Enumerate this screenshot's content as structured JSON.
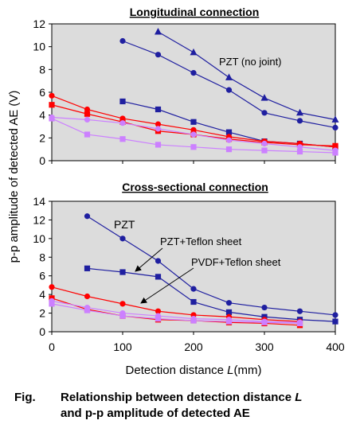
{
  "figure": {
    "y_axis_label": "p-p amplitude of detected AE (V)",
    "x_axis_label_prefix": "Detection distance ",
    "x_axis_label_var": "L",
    "x_axis_label_suffix": "(mm)",
    "caption_label": "Fig.",
    "caption_line1_text": "Relationship between detection distance ",
    "caption_line1_var": "L",
    "caption_line2_text": "and p-p amplitude of detected AE"
  },
  "chart_data": [
    {
      "type": "line",
      "title": "Longitudinal connection",
      "xlim": [
        0,
        400
      ],
      "ylim": [
        0,
        12
      ],
      "x_ticks": [
        0,
        100,
        200,
        300,
        400
      ],
      "y_ticks": [
        0,
        2,
        4,
        6,
        8,
        10,
        12
      ],
      "grid": false,
      "annotations": [
        {
          "text": "PZT (no joint)"
        }
      ],
      "series": [
        {
          "marker": "triangle",
          "color": "#1f1fa0",
          "x": [
            150,
            200,
            250,
            300,
            350,
            400
          ],
          "y": [
            11.3,
            9.5,
            7.3,
            5.5,
            4.2,
            3.6
          ]
        },
        {
          "marker": "circle",
          "color": "#1f1fa0",
          "x": [
            100,
            150,
            200,
            250,
            300,
            350,
            400
          ],
          "y": [
            10.5,
            9.3,
            7.7,
            6.2,
            4.2,
            3.5,
            2.9
          ]
        },
        {
          "marker": "square",
          "color": "#1f1fa0",
          "x": [
            100,
            150,
            200,
            250,
            300,
            350,
            400
          ],
          "y": [
            5.2,
            4.5,
            3.4,
            2.5,
            1.7,
            1.5,
            1.2
          ]
        },
        {
          "marker": "circle",
          "color": "#ff0000",
          "x": [
            0,
            50,
            100,
            150,
            200,
            250,
            300,
            350,
            400
          ],
          "y": [
            5.7,
            4.5,
            3.7,
            3.2,
            2.7,
            2.1,
            1.7,
            1.5,
            1.2
          ]
        },
        {
          "marker": "square",
          "color": "#ff0000",
          "x": [
            0,
            50,
            100,
            150,
            200,
            250,
            300,
            350,
            400
          ],
          "y": [
            4.9,
            4.1,
            3.4,
            2.6,
            2.3,
            1.9,
            1.6,
            1.4,
            1.3
          ]
        },
        {
          "marker": "circle",
          "color": "#cc80ff",
          "x": [
            0,
            50,
            100,
            150,
            200,
            250,
            300,
            350,
            400
          ],
          "y": [
            3.8,
            3.6,
            3.3,
            2.8,
            2.3,
            1.8,
            1.5,
            1.2,
            0.9
          ]
        },
        {
          "marker": "square",
          "color": "#cc80ff",
          "x": [
            0,
            50,
            100,
            150,
            200,
            250,
            300,
            350,
            400
          ],
          "y": [
            3.7,
            2.3,
            1.9,
            1.4,
            1.2,
            1.0,
            0.9,
            0.8,
            0.7
          ]
        }
      ]
    },
    {
      "type": "line",
      "title": "Cross-sectional connection",
      "xlim": [
        0,
        400
      ],
      "ylim": [
        0,
        14
      ],
      "x_ticks": [
        0,
        100,
        200,
        300,
        400
      ],
      "y_ticks": [
        0,
        2,
        4,
        6,
        8,
        10,
        12,
        14
      ],
      "grid": false,
      "annotations": [
        {
          "text": "PZT"
        },
        {
          "text": "PZT+Teflon sheet"
        },
        {
          "text": "PVDF+Teflon sheet"
        }
      ],
      "series": [
        {
          "marker": "circle",
          "color": "#1f1fa0",
          "x": [
            50,
            100,
            150,
            200,
            250,
            300,
            350,
            400
          ],
          "y": [
            12.4,
            10.0,
            7.6,
            4.6,
            3.1,
            2.6,
            2.2,
            1.8
          ]
        },
        {
          "marker": "square",
          "color": "#1f1fa0",
          "x": [
            50,
            100,
            150,
            200,
            250,
            300,
            350,
            400
          ],
          "y": [
            6.8,
            6.4,
            5.9,
            3.2,
            2.1,
            1.6,
            1.3,
            1.1
          ]
        },
        {
          "marker": "circle",
          "color": "#ff0000",
          "x": [
            0,
            50,
            100,
            150,
            200,
            250,
            300,
            350
          ],
          "y": [
            4.8,
            3.8,
            3.0,
            2.2,
            1.8,
            1.6,
            1.3,
            1.1
          ]
        },
        {
          "marker": "square",
          "color": "#ff0000",
          "x": [
            0,
            50,
            100,
            150,
            200,
            250,
            300,
            350
          ],
          "y": [
            3.6,
            2.4,
            1.7,
            1.3,
            1.2,
            1.0,
            0.9,
            0.7
          ]
        },
        {
          "marker": "circle",
          "color": "#cc80ff",
          "x": [
            0,
            50,
            100,
            150,
            200,
            250,
            300,
            350
          ],
          "y": [
            3.3,
            2.6,
            2.0,
            1.7,
            1.4,
            1.3,
            1.1,
            1.0
          ]
        },
        {
          "marker": "square",
          "color": "#cc80ff",
          "x": [
            0,
            50,
            100,
            150,
            200,
            250,
            300,
            350
          ],
          "y": [
            3.0,
            2.3,
            1.7,
            1.4,
            1.2,
            1.1,
            1.0,
            0.9
          ]
        }
      ]
    }
  ]
}
